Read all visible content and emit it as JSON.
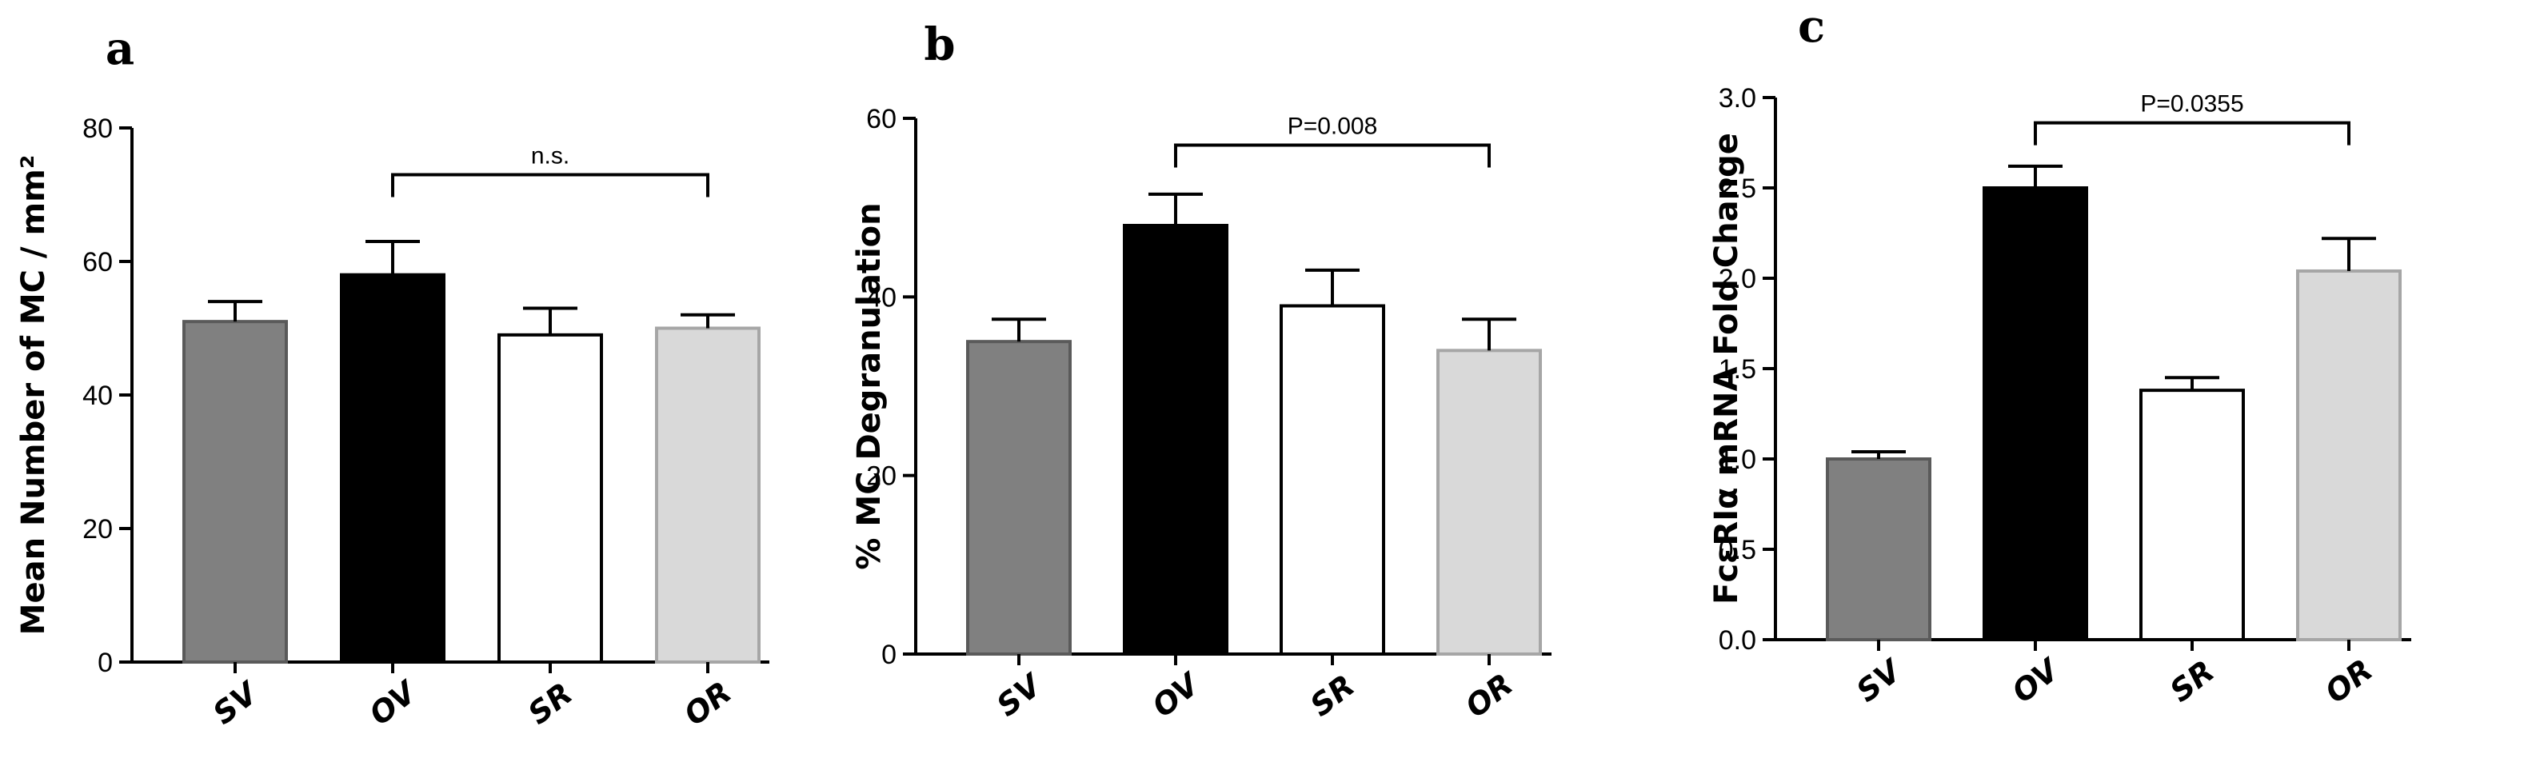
{
  "chart_data": [
    {
      "type": "bar",
      "panel": "a",
      "categories": [
        "SV",
        "OV",
        "SR",
        "OR"
      ],
      "values": [
        51,
        58,
        49,
        50
      ],
      "errors": [
        3,
        5,
        4,
        2
      ],
      "ylabel": "Mean Number of MC / mm²",
      "ylim": [
        0,
        80
      ],
      "yticks": [
        "0",
        "20",
        "40",
        "60",
        "80"
      ],
      "grid": false,
      "bar_colors": [
        "#808080",
        "#000000",
        "#ffffff",
        "#d9d9d9"
      ],
      "bar_edges": [
        "#5a5a5a",
        "#000000",
        "#000000",
        "#a6a6a6"
      ],
      "comparison": {
        "from": 1,
        "to": 3,
        "label": "n.s.",
        "y": 73
      }
    },
    {
      "type": "bar",
      "panel": "b",
      "categories": [
        "SV",
        "OV",
        "SR",
        "OR"
      ],
      "values": [
        35,
        48,
        39,
        34
      ],
      "errors": [
        2.5,
        3.5,
        4,
        3.5
      ],
      "ylabel": "% MC Degranulation",
      "ylim": [
        0,
        60
      ],
      "yticks": [
        "0",
        "20",
        "40",
        "60"
      ],
      "grid": false,
      "bar_colors": [
        "#808080",
        "#000000",
        "#ffffff",
        "#d9d9d9"
      ],
      "bar_edges": [
        "#5a5a5a",
        "#000000",
        "#000000",
        "#a6a6a6"
      ],
      "comparison": {
        "from": 1,
        "to": 3,
        "label": "P=0.008",
        "y": 57
      }
    },
    {
      "type": "bar",
      "panel": "c",
      "categories": [
        "SV",
        "OV",
        "SR",
        "OR"
      ],
      "values": [
        1.0,
        2.5,
        1.38,
        2.04
      ],
      "errors": [
        0.04,
        0.12,
        0.07,
        0.18
      ],
      "ylabel": "FcεRIα mRNA Fold Change",
      "ylim": [
        0,
        3.0
      ],
      "yticks": [
        "0.0",
        "0.5",
        "1.0",
        "1.5",
        "2.0",
        "2.5",
        "3.0"
      ],
      "grid": false,
      "bar_colors": [
        "#808080",
        "#000000",
        "#ffffff",
        "#d9d9d9"
      ],
      "bar_edges": [
        "#5a5a5a",
        "#000000",
        "#000000",
        "#a6a6a6"
      ],
      "comparison": {
        "from": 1,
        "to": 3,
        "label": "P=0.0355",
        "y": 2.86
      }
    }
  ]
}
